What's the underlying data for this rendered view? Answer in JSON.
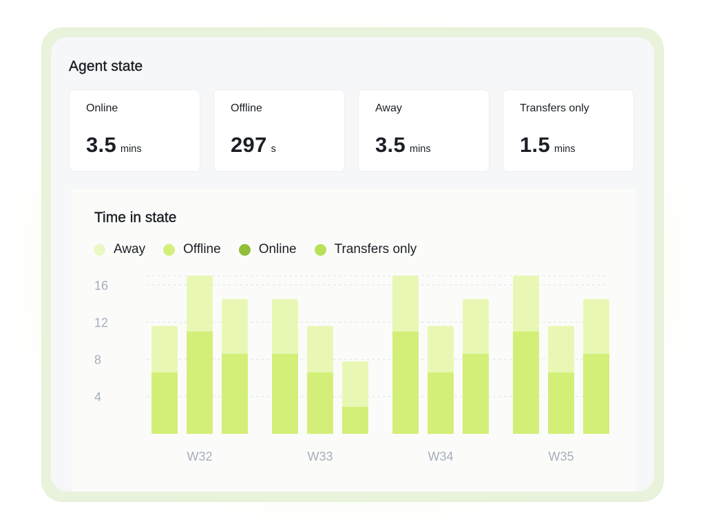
{
  "agent_state": {
    "title": "Agent state",
    "cards": [
      {
        "label": "Online",
        "value": "3.5",
        "unit": "mins"
      },
      {
        "label": "Offline",
        "value": "297",
        "unit": "s"
      },
      {
        "label": "Away",
        "value": "3.5",
        "unit": "mins"
      },
      {
        "label": "Transfers only",
        "value": "1.5",
        "unit": "mins"
      }
    ]
  },
  "time_in_state": {
    "title": "Time in state",
    "legend": [
      {
        "label": "Away",
        "color": "#eaf8c4",
        "icon": "circle-dot-icon"
      },
      {
        "label": "Offline",
        "color": "#d4f07a",
        "icon": "circle-dot-icon"
      },
      {
        "label": "Online",
        "color": "#8fbf3a",
        "icon": "circle-dot-icon"
      },
      {
        "label": "Transfers only",
        "color": "#b9e05a",
        "icon": "circle-dot-icon"
      }
    ]
  },
  "chart_data": {
    "type": "bar",
    "stacked": true,
    "title": "Time in state",
    "categories": [
      "W32",
      "W33",
      "W34",
      "W35"
    ],
    "bars_per_category": 3,
    "yticks": [
      4,
      8,
      12,
      16
    ],
    "ylim": [
      0,
      17
    ],
    "grid": true,
    "series": [
      {
        "name": "Offline",
        "color": "#d3ef78",
        "values": [
          [
            6.6,
            11,
            8.6
          ],
          [
            8.6,
            6.6,
            2.9
          ],
          [
            11,
            6.6,
            8.6
          ],
          [
            11,
            6.6,
            8.6
          ]
        ]
      },
      {
        "name": "Away",
        "color": "#e8f8b4",
        "values": [
          [
            11.6,
            17,
            14.5
          ],
          [
            14.5,
            11.6,
            7.8
          ],
          [
            17,
            11.6,
            14.5
          ],
          [
            17,
            11.6,
            14.5
          ]
        ]
      }
    ]
  }
}
